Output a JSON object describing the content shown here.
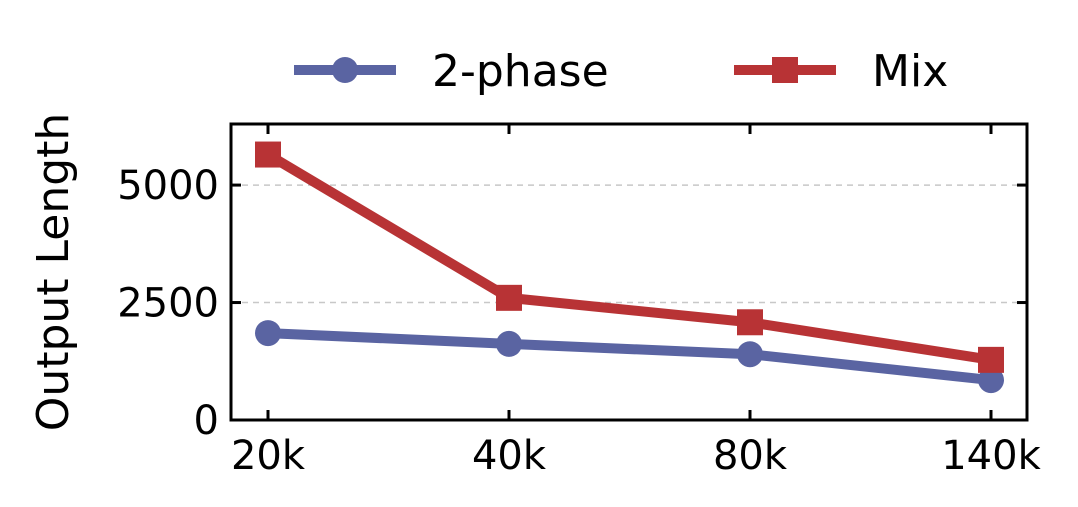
{
  "chart_data": {
    "type": "line",
    "categories": [
      "20k",
      "40k",
      "80k",
      "140k"
    ],
    "ylabel": "Output Length",
    "xlabel": "",
    "ylim": [
      0,
      6300
    ],
    "yticks": [
      0,
      2500,
      5000
    ],
    "ytick_labels": [
      "0",
      "2500",
      "5000"
    ],
    "grid": "horizontal dashed",
    "legend_position": "top-center, outside plot",
    "series": [
      {
        "name": "2-phase",
        "marker": "circle",
        "color": "#5a64a2",
        "values": [
          1850,
          1620,
          1400,
          850
        ]
      },
      {
        "name": "Mix",
        "marker": "square",
        "color": "#b83335",
        "values": [
          5650,
          2600,
          2080,
          1280
        ]
      }
    ]
  }
}
